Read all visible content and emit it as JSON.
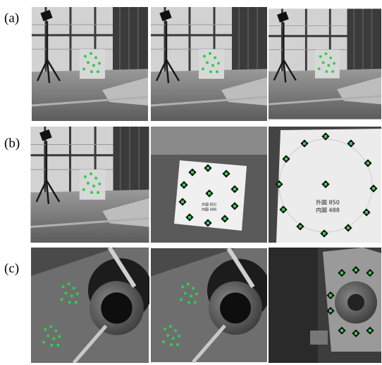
{
  "rows": [
    {
      "label": "(a)"
    },
    {
      "label": "(b)",
      "board_texts": [
        [
          "外圆 850",
          "内圆 488"
        ],
        [
          "外圆 850",
          "内圆 488"
        ]
      ]
    },
    {
      "label": "(c)"
    }
  ]
}
